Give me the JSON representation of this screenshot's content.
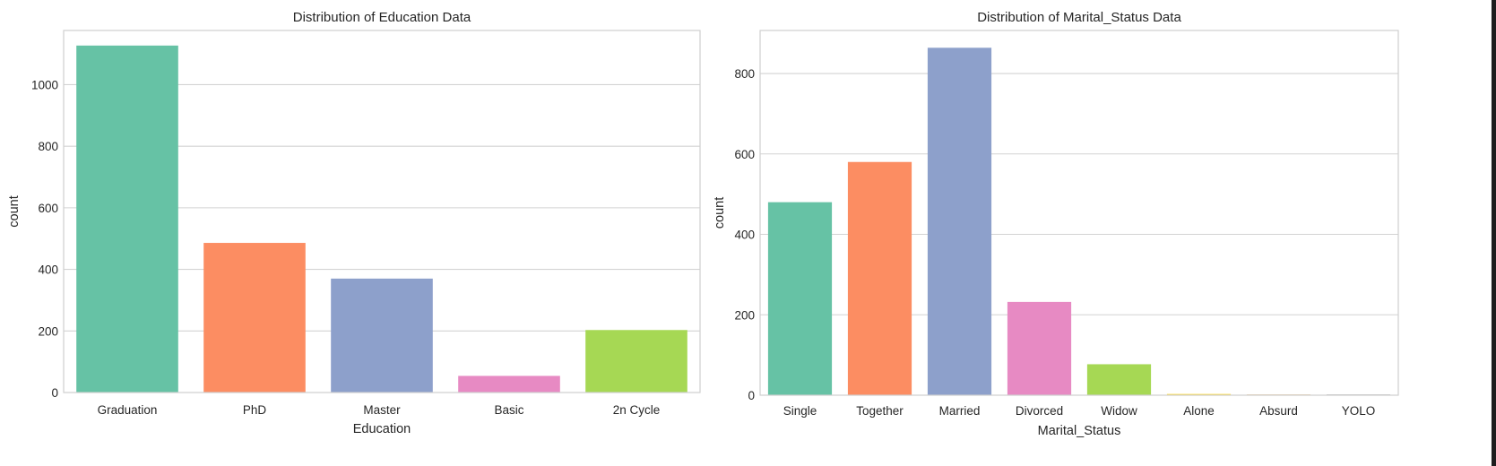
{
  "chart_data": [
    {
      "type": "bar",
      "title": "Distribution of Education Data",
      "xlabel": "Education",
      "ylabel": "count",
      "categories": [
        "Graduation",
        "PhD",
        "Master",
        "Basic",
        "2n Cycle"
      ],
      "values": [
        1127,
        486,
        370,
        54,
        203
      ],
      "colors": [
        "#66c2a5",
        "#fc8d62",
        "#8da0cb",
        "#e78ac3",
        "#a6d854"
      ],
      "ylim": [
        0,
        1176
      ],
      "yticks": [
        0,
        200,
        400,
        600,
        800,
        1000
      ],
      "grid": true,
      "legend": "none"
    },
    {
      "type": "bar",
      "title": "Distribution of Marital_Status Data",
      "xlabel": "Marital_Status",
      "ylabel": "count",
      "categories": [
        "Single",
        "Together",
        "Married",
        "Divorced",
        "Widow",
        "Alone",
        "Absurd",
        "YOLO"
      ],
      "values": [
        480,
        580,
        864,
        232,
        77,
        3,
        2,
        2
      ],
      "colors": [
        "#66c2a5",
        "#fc8d62",
        "#8da0cb",
        "#e78ac3",
        "#a6d854",
        "#ffd92f",
        "#e5c494",
        "#b3b3b3"
      ],
      "ylim": [
        0,
        907
      ],
      "yticks": [
        0,
        200,
        400,
        600,
        800
      ],
      "grid": true,
      "legend": "none"
    }
  ]
}
